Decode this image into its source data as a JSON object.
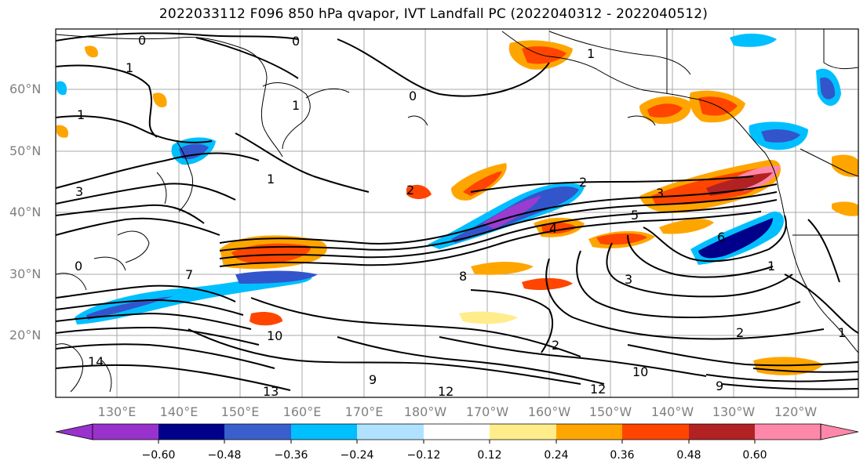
{
  "title": "2022033112 F096 850 hPa qvapor, IVT Landfall PC (2022040312 - 2022040512)",
  "map": {
    "lat_labels": [
      "60°N",
      "50°N",
      "40°N",
      "30°N",
      "20°N"
    ],
    "lon_labels": [
      "130°E",
      "140°E",
      "150°E",
      "160°E",
      "170°E",
      "180°W",
      "170°W",
      "160°W",
      "150°W",
      "140°W",
      "130°W",
      "120°W"
    ],
    "contour_labels": [
      "0",
      "1",
      "0",
      "1",
      "1",
      "0",
      "1",
      "1",
      "3",
      "2",
      "3",
      "5",
      "4",
      "6",
      "2",
      "3",
      "1",
      "7",
      "8",
      "0",
      "9",
      "10",
      "12",
      "13",
      "14",
      "2",
      "10",
      "12",
      "9",
      "2",
      "1"
    ],
    "anomaly_colors": {
      "deep_purple": "#9a3ccf",
      "navy": "#00008b",
      "blue": "#3355cc",
      "sky": "#00bfff",
      "light_blue": "#b0e2ff",
      "yellow": "#ffec8b",
      "orange": "#ffa500",
      "red_orange": "#ff4500",
      "dark_red": "#b22222",
      "pink": "#ff88aa"
    }
  },
  "colorbar": {
    "ticks": [
      "−0.60",
      "−0.48",
      "−0.36",
      "−0.24",
      "−0.12",
      "0.12",
      "0.24",
      "0.36",
      "0.48",
      "0.60"
    ],
    "colors": [
      "#9932cc",
      "#00008b",
      "#3a5fcd",
      "#00bfff",
      "#b0e2ff",
      "#ffffff",
      "#ffec8b",
      "#ffa500",
      "#ff4500",
      "#b22222",
      "#ff88aa"
    ]
  }
}
